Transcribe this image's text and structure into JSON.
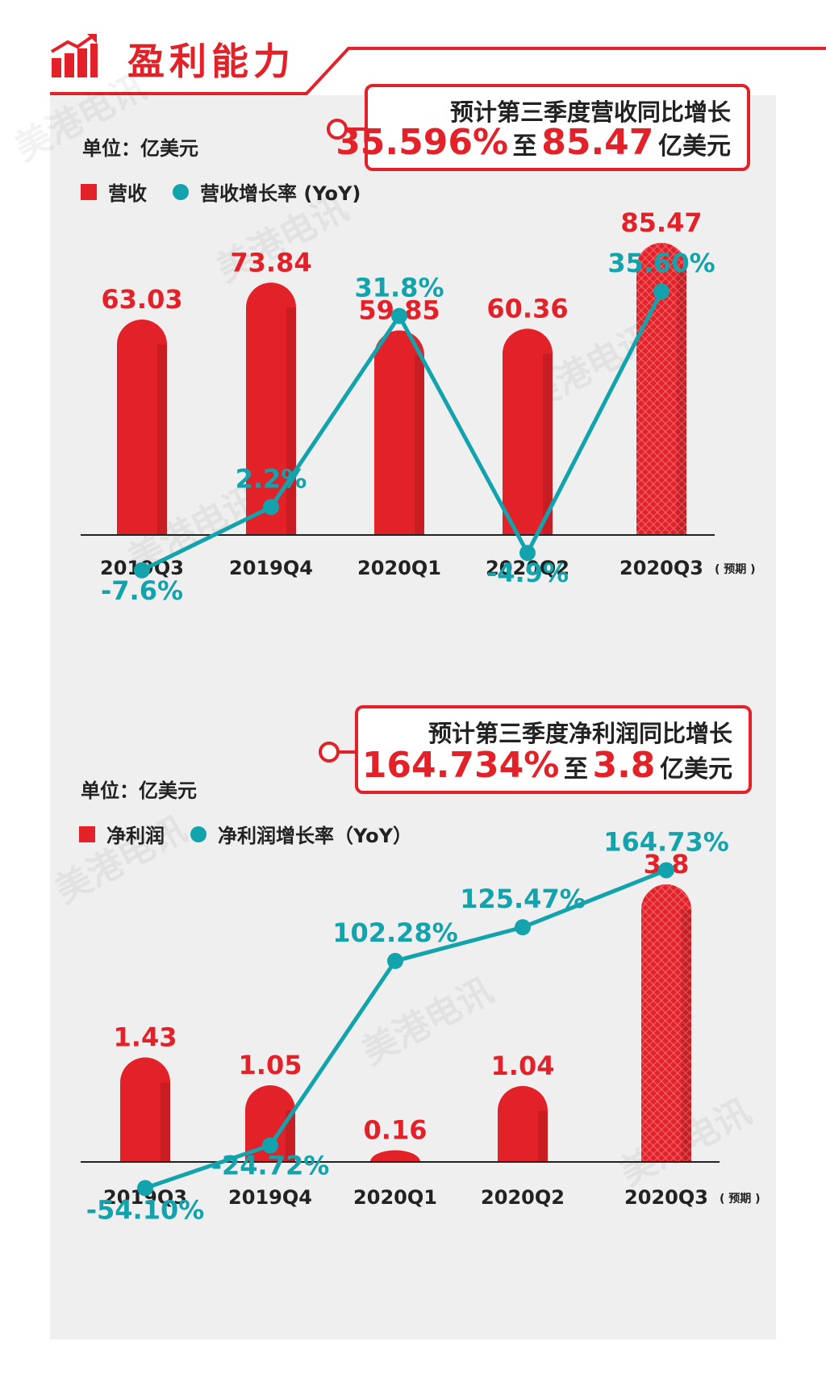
{
  "header": {
    "title": "盈利能力",
    "icon": "rising-bar-chart-icon"
  },
  "colors": {
    "accent": "#e32128",
    "line": "#12a3ad",
    "panel": "#efefef"
  },
  "watermark": "美港电讯",
  "chart_data": [
    {
      "type": "bar",
      "callout": {
        "title": "预计第三季度营收同比增长",
        "pct": "35.596%",
        "mid": "至",
        "amount": "85.47",
        "unit": "亿美元"
      },
      "unit_label": "单位：亿美元",
      "legend": {
        "bar": "营收",
        "line": "营收增长率 (YoY)"
      },
      "categories": [
        "2019Q3",
        "2019Q4",
        "2020Q1",
        "2020Q2",
        "2020Q3"
      ],
      "forecast_note": "( 预期 )",
      "series": [
        {
          "name": "营收",
          "type": "bar",
          "values": [
            63.03,
            73.84,
            59.85,
            60.36,
            85.47
          ],
          "labels": [
            "63.03",
            "73.84",
            "59.85",
            "60.36",
            "85.47"
          ]
        },
        {
          "name": "营收增长率 (YoY)",
          "type": "line",
          "values": [
            -7.6,
            2.2,
            31.8,
            -4.9,
            35.6
          ],
          "labels": [
            "-7.6%",
            "2.2%",
            "31.8%",
            "-4.9%",
            "35.60%"
          ]
        }
      ]
    },
    {
      "type": "bar",
      "callout": {
        "title": "预计第三季度净利润同比增长",
        "pct": "164.734%",
        "mid": "至",
        "amount": "3.8",
        "unit": "亿美元"
      },
      "unit_label": "单位：亿美元",
      "legend": {
        "bar": "净利润",
        "line": "净利润增长率（YoY）"
      },
      "categories": [
        "2019Q3",
        "2019Q4",
        "2020Q1",
        "2020Q2",
        "2020Q3"
      ],
      "forecast_note": "( 预期 )",
      "series": [
        {
          "name": "净利润",
          "type": "bar",
          "values": [
            1.43,
            1.05,
            0.16,
            1.04,
            3.8
          ],
          "labels": [
            "1.43",
            "1.05",
            "0.16",
            "1.04",
            "3.8"
          ]
        },
        {
          "name": "净利润增长率（YoY）",
          "type": "line",
          "values": [
            -54.1,
            -24.72,
            102.28,
            125.47,
            164.73
          ],
          "labels": [
            "-54.10%",
            "-24.72%",
            "102.28%",
            "125.47%",
            "164.73%"
          ]
        }
      ]
    }
  ]
}
